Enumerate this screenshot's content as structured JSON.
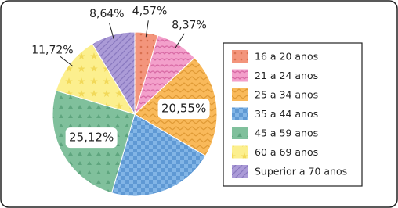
{
  "chart_data": {
    "type": "pie",
    "categories": [
      "16 a 20 anos",
      "21 a 24 anos",
      "25 a 34 anos",
      "35 a 44 anos",
      "45 a 59 anos",
      "60 a 69 anos",
      "Superior a 70 anos"
    ],
    "values": [
      4.57,
      8.37,
      20.55,
      21.03,
      25.12,
      11.72,
      8.64
    ],
    "value_labels": [
      "4,57%",
      "8,37%",
      "20,55%",
      null,
      "25,12%",
      "11,72%",
      "8,64%"
    ],
    "colors": [
      "#f3957c",
      "#f3a0cb",
      "#f9b95a",
      "#82b5e6",
      "#80c09c",
      "#fcef8e",
      "#ab9bd7"
    ]
  }
}
